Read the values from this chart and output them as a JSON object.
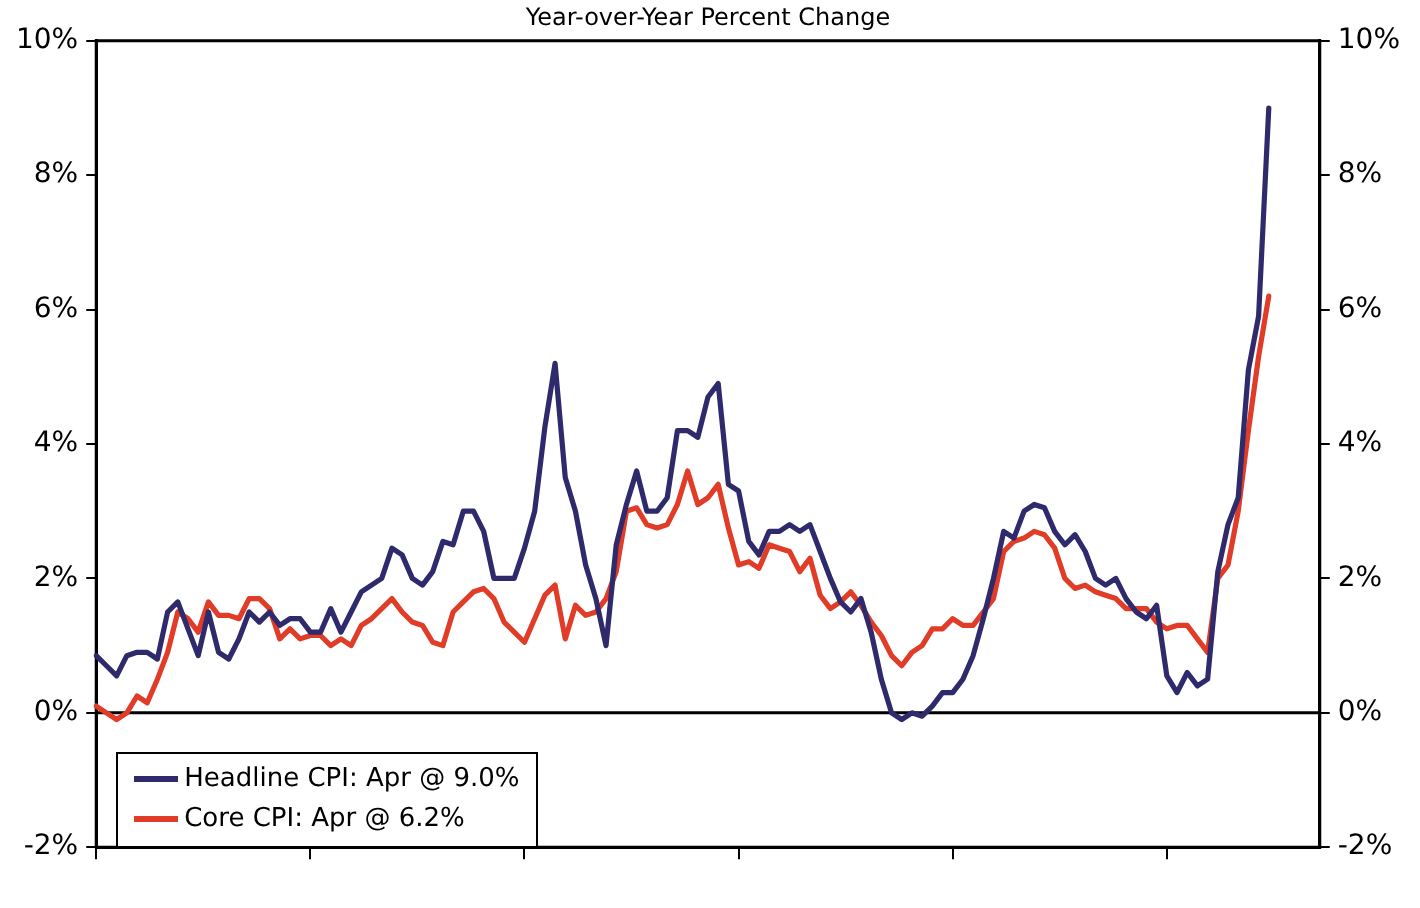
{
  "chart_data": {
    "type": "line",
    "title": "Year-over-Year Percent Change",
    "categories": [
      null,
      null,
      null,
      null,
      null,
      null,
      null,
      null,
      null,
      null,
      null,
      null,
      null,
      null,
      null,
      null,
      null,
      null,
      null,
      null,
      null,
      null,
      null,
      null,
      null,
      null,
      null,
      null,
      null,
      null,
      null,
      null,
      null,
      null,
      null,
      null,
      null,
      null,
      null,
      null,
      null,
      null,
      null,
      null,
      null,
      null,
      null,
      null,
      null,
      null,
      null,
      null,
      null,
      null,
      null,
      null,
      null,
      null,
      null,
      null,
      null,
      null,
      null,
      null,
      null,
      null,
      null,
      null,
      null,
      null,
      null,
      null,
      null,
      null,
      null,
      null,
      null,
      null,
      null,
      null,
      null,
      null,
      null,
      null,
      null,
      null,
      null,
      null,
      null,
      null,
      null,
      null,
      null,
      null,
      null,
      null,
      null,
      null,
      null,
      null,
      null,
      null,
      null,
      null,
      null,
      null,
      null,
      null,
      null,
      null,
      null,
      null,
      null,
      null,
      null,
      null,
      null,
      null,
      null,
      null,
      null
    ],
    "series": [
      {
        "name": "Headline CPI: Apr @ 9.0%",
        "color": "#2e2a6b",
        "values": [
          0.85,
          0.7,
          0.55,
          0.85,
          0.9,
          0.9,
          0.8,
          1.5,
          1.65,
          1.25,
          0.85,
          1.5,
          0.9,
          0.8,
          1.1,
          1.5,
          1.35,
          1.5,
          1.3,
          1.4,
          1.4,
          1.2,
          1.2,
          1.55,
          1.2,
          1.5,
          1.8,
          1.9,
          2.0,
          2.45,
          2.35,
          2.0,
          1.9,
          2.1,
          2.55,
          2.5,
          3.0,
          3.0,
          2.7,
          2.0,
          2.0,
          2.0,
          2.45,
          3.0,
          4.25,
          5.2,
          3.5,
          3.0,
          2.2,
          1.7,
          1.0,
          2.5,
          3.1,
          3.6,
          3.0,
          3.0,
          3.2,
          4.2,
          4.2,
          4.1,
          4.7,
          4.9,
          3.4,
          3.3,
          2.55,
          2.35,
          2.7,
          2.7,
          2.8,
          2.7,
          2.8,
          2.4,
          2.0,
          1.65,
          1.5,
          1.7,
          1.2,
          0.5,
          0.0,
          -0.1,
          0.0,
          -0.05,
          0.1,
          0.3,
          0.3,
          0.5,
          0.85,
          1.4,
          2.0,
          2.7,
          2.6,
          3.0,
          3.1,
          3.05,
          2.7,
          2.5,
          2.65,
          2.4,
          2.0,
          1.9,
          2.0,
          1.7,
          1.5,
          1.4,
          1.6,
          0.55,
          0.3,
          0.6,
          0.4,
          0.5,
          2.1,
          2.8,
          3.2,
          5.1,
          5.9,
          9.0,
          null,
          null,
          null,
          null,
          null
        ]
      },
      {
        "name": "Core CPI: Apr @ 6.2%",
        "color": "#e03c28",
        "values": [
          0.1,
          0.0,
          -0.1,
          0.0,
          0.25,
          0.15,
          0.5,
          0.9,
          1.5,
          1.4,
          1.2,
          1.65,
          1.45,
          1.45,
          1.4,
          1.7,
          1.7,
          1.55,
          1.1,
          1.25,
          1.1,
          1.15,
          1.15,
          1.0,
          1.1,
          1.0,
          1.3,
          1.4,
          1.55,
          1.7,
          1.5,
          1.35,
          1.3,
          1.05,
          1.0,
          1.5,
          1.65,
          1.8,
          1.85,
          1.7,
          1.35,
          1.2,
          1.05,
          1.4,
          1.75,
          1.9,
          1.1,
          1.6,
          1.45,
          1.5,
          1.7,
          2.1,
          3.0,
          3.05,
          2.8,
          2.75,
          2.8,
          3.1,
          3.6,
          3.1,
          3.2,
          3.4,
          2.75,
          2.2,
          2.25,
          2.15,
          2.5,
          2.45,
          2.4,
          2.1,
          2.3,
          1.75,
          1.55,
          1.65,
          1.8,
          1.6,
          1.35,
          1.15,
          0.85,
          0.7,
          0.9,
          1.0,
          1.25,
          1.25,
          1.4,
          1.3,
          1.3,
          1.5,
          1.7,
          2.4,
          2.55,
          2.6,
          2.7,
          2.65,
          2.45,
          2.0,
          1.85,
          1.9,
          1.8,
          1.75,
          1.7,
          1.55,
          1.55,
          1.55,
          1.35,
          1.25,
          1.3,
          1.3,
          1.1,
          0.9,
          2.0,
          2.2,
          3.0,
          4.2,
          5.3,
          6.2,
          null,
          null,
          null,
          null,
          null
        ]
      }
    ],
    "ylim": [
      -2,
      10
    ],
    "yticks": [
      {
        "value": -2,
        "label": "-2%"
      },
      {
        "value": 0,
        "label": "0%"
      },
      {
        "value": 2,
        "label": "2%"
      },
      {
        "value": 4,
        "label": "4%"
      },
      {
        "value": 6,
        "label": "6%"
      },
      {
        "value": 8,
        "label": "8%"
      },
      {
        "value": 10,
        "label": "10%"
      }
    ],
    "y2lim": [
      -2,
      10
    ],
    "y2ticks": [
      {
        "value": -2,
        "label": "-2%"
      },
      {
        "value": 0,
        "label": "0%"
      },
      {
        "value": 2,
        "label": "2%"
      },
      {
        "value": 4,
        "label": "4%"
      },
      {
        "value": 6,
        "label": "6%"
      },
      {
        "value": 8,
        "label": "8%"
      },
      {
        "value": 10,
        "label": "10%"
      }
    ],
    "ref_lines": [
      {
        "axis": "y",
        "value": 0
      }
    ],
    "legend": "bottom left",
    "marker": "none",
    "line_style": "solid"
  }
}
